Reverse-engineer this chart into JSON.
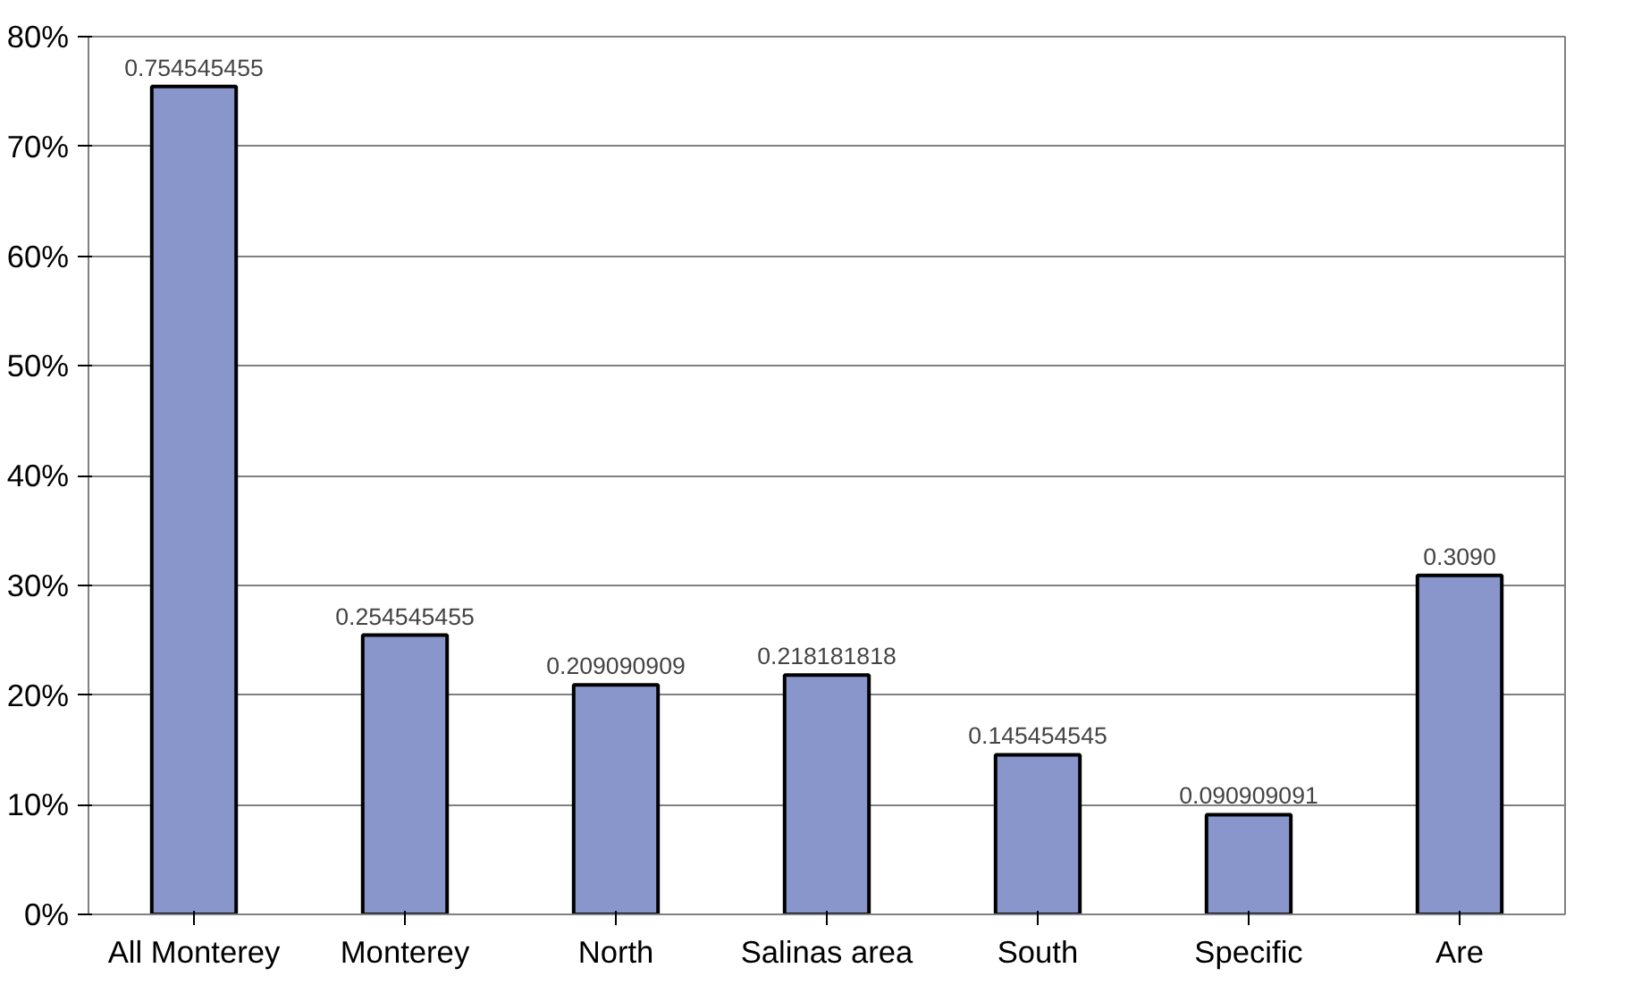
{
  "chart_data": {
    "type": "bar",
    "categories": [
      "All Monterey",
      "Monterey",
      "North",
      "Salinas area",
      "South",
      "Specific",
      "Are"
    ],
    "values": [
      0.754545455,
      0.254545455,
      0.209090909,
      0.218181818,
      0.145454545,
      0.090909091,
      0.309
    ],
    "value_labels": [
      "0.754545455",
      "0.254545455",
      "0.209090909",
      "0.218181818",
      "0.145454545",
      "0.090909091",
      "0.3090"
    ],
    "color": "#8896cc",
    "ylim": [
      0,
      0.8
    ],
    "yticks": [
      {
        "value": 0,
        "label": "0%"
      },
      {
        "value": 0.1,
        "label": "10%"
      },
      {
        "value": 0.2,
        "label": "20%"
      },
      {
        "value": 0.3,
        "label": "30%"
      },
      {
        "value": 0.4,
        "label": "40%"
      },
      {
        "value": 0.5,
        "label": "50%"
      },
      {
        "value": 0.6,
        "label": "60%"
      },
      {
        "value": 0.7,
        "label": "70%"
      },
      {
        "value": 0.8,
        "label": "80%"
      }
    ],
    "grid": "y"
  }
}
